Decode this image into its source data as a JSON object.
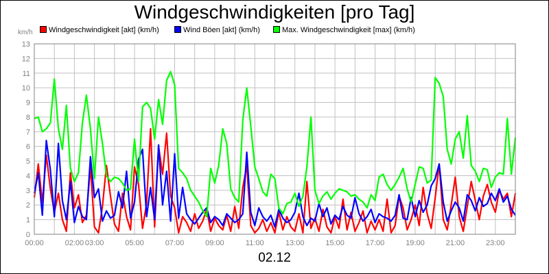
{
  "chart_data": {
    "type": "line",
    "title": "Windgeschwindigkeiten [pro Tag]",
    "xlabel": "02.12",
    "ylabel": "km/h",
    "ylim": [
      0,
      13
    ],
    "yticks": [
      0,
      1,
      2,
      3,
      4,
      5,
      6,
      7,
      8,
      9,
      10,
      11,
      12,
      13
    ],
    "xlim": [
      "00:00",
      "24:00"
    ],
    "xticks": [
      "00:00",
      "02:00",
      "03:00",
      "05:00",
      "07:00",
      "09:00",
      "11:00",
      "13:00",
      "15:00",
      "17:00",
      "19:00",
      "21:00",
      "23:00"
    ],
    "grid": true,
    "legend": "top",
    "series": [
      {
        "name": "Windgeschwindigkeit [akt] (km/h)",
        "color": "#ff0000",
        "x": [
          "00:00",
          "00:12",
          "00:24",
          "00:36",
          "00:48",
          "01:00",
          "01:12",
          "01:24",
          "01:36",
          "01:48",
          "02:00",
          "02:12",
          "02:24",
          "02:36",
          "02:48",
          "03:00",
          "03:12",
          "03:24",
          "03:36",
          "03:48",
          "04:00",
          "04:12",
          "04:24",
          "04:36",
          "04:48",
          "05:00",
          "05:12",
          "05:24",
          "05:36",
          "05:48",
          "06:00",
          "06:12",
          "06:24",
          "06:36",
          "06:48",
          "07:00",
          "07:12",
          "07:24",
          "07:36",
          "07:48",
          "08:00",
          "08:12",
          "08:24",
          "08:36",
          "08:48",
          "09:00",
          "09:12",
          "09:24",
          "09:36",
          "09:48",
          "10:00",
          "10:12",
          "10:24",
          "10:36",
          "10:48",
          "11:00",
          "11:12",
          "11:24",
          "11:36",
          "11:48",
          "12:00",
          "12:12",
          "12:24",
          "12:36",
          "12:48",
          "13:00",
          "13:12",
          "13:24",
          "13:36",
          "13:48",
          "14:00",
          "14:12",
          "14:24",
          "14:36",
          "14:48",
          "15:00",
          "15:12",
          "15:24",
          "15:36",
          "15:48",
          "16:00",
          "16:12",
          "16:24",
          "16:36",
          "16:48",
          "17:00",
          "17:12",
          "17:24",
          "17:36",
          "17:48",
          "18:00",
          "18:12",
          "18:24",
          "18:36",
          "18:48",
          "19:00",
          "19:12",
          "19:24",
          "19:36",
          "19:48",
          "20:00",
          "20:12",
          "20:24",
          "20:36",
          "20:48",
          "21:00",
          "21:12",
          "21:24",
          "21:36",
          "21:48",
          "22:00",
          "22:12",
          "22:24",
          "22:36",
          "22:48",
          "23:00",
          "23:12",
          "23:24",
          "23:36",
          "23:48",
          "24:00"
        ],
        "values": [
          2.5,
          4.8,
          2.2,
          5.4,
          3.1,
          1.5,
          2.8,
          1.0,
          0.2,
          4.2,
          1.8,
          2.7,
          0.8,
          1.3,
          4.6,
          0.5,
          0.1,
          1.9,
          4.7,
          2.6,
          0.7,
          0.2,
          2.8,
          1.2,
          0.3,
          4.6,
          3.4,
          0.4,
          2.1,
          7.2,
          0.5,
          6.0,
          4.1,
          6.9,
          2.6,
          1.8,
          0.1,
          1.2,
          0.8,
          0.2,
          1.4,
          0.4,
          0.9,
          1.7,
          0.2,
          1.1,
          0.6,
          0.3,
          1.3,
          0.2,
          1.9,
          0.4,
          3.2,
          4.7,
          0.6,
          0.1,
          0.4,
          1.0,
          0.2,
          0.8,
          0.1,
          1.5,
          0.3,
          1.2,
          0.5,
          0.2,
          1.4,
          0.1,
          3.6,
          0.4,
          1.1,
          0.2,
          1.7,
          0.5,
          0.1,
          1.2,
          0.4,
          2.4,
          0.3,
          1.5,
          0.2,
          0.8,
          1.6,
          0.1,
          0.9,
          0.3,
          1.0,
          0.2,
          2.4,
          0.1,
          0.6,
          2.6,
          1.8,
          0.3,
          1.0,
          2.0,
          0.6,
          3.2,
          1.4,
          0.4,
          2.5,
          4.8,
          1.0,
          0.3,
          2.0,
          3.9,
          1.2,
          0.2,
          1.9,
          3.6,
          2.3,
          1.0,
          2.6,
          3.4,
          2.2,
          1.5,
          3.0,
          2.4,
          2.8,
          1.2,
          2.8
        ]
      },
      {
        "name": "Wind Böen [akt] (km/h)",
        "color": "#0000ff",
        "x": [
          "00:00",
          "00:12",
          "00:24",
          "00:36",
          "00:48",
          "01:00",
          "01:12",
          "01:24",
          "01:36",
          "01:48",
          "02:00",
          "02:12",
          "02:24",
          "02:36",
          "02:48",
          "03:00",
          "03:12",
          "03:24",
          "03:36",
          "03:48",
          "04:00",
          "04:12",
          "04:24",
          "04:36",
          "04:48",
          "05:00",
          "05:12",
          "05:24",
          "05:36",
          "05:48",
          "06:00",
          "06:12",
          "06:24",
          "06:36",
          "06:48",
          "07:00",
          "07:12",
          "07:24",
          "07:36",
          "07:48",
          "08:00",
          "08:12",
          "08:24",
          "08:36",
          "08:48",
          "09:00",
          "09:12",
          "09:24",
          "09:36",
          "09:48",
          "10:00",
          "10:12",
          "10:24",
          "10:36",
          "10:48",
          "11:00",
          "11:12",
          "11:24",
          "11:36",
          "11:48",
          "12:00",
          "12:12",
          "12:24",
          "12:36",
          "12:48",
          "13:00",
          "13:12",
          "13:24",
          "13:36",
          "13:48",
          "14:00",
          "14:12",
          "14:24",
          "14:36",
          "14:48",
          "15:00",
          "15:12",
          "15:24",
          "15:36",
          "15:48",
          "16:00",
          "16:12",
          "16:24",
          "16:36",
          "16:48",
          "17:00",
          "17:12",
          "17:24",
          "17:36",
          "17:48",
          "18:00",
          "18:12",
          "18:24",
          "18:36",
          "18:48",
          "19:00",
          "19:12",
          "19:24",
          "19:36",
          "19:48",
          "20:00",
          "20:12",
          "20:24",
          "20:36",
          "20:48",
          "21:00",
          "21:12",
          "21:24",
          "21:36",
          "21:48",
          "22:00",
          "22:12",
          "22:24",
          "22:36",
          "22:48",
          "23:00",
          "23:12",
          "23:24",
          "23:36",
          "23:48",
          "24:00"
        ],
        "values": [
          2.8,
          4.2,
          1.3,
          6.4,
          4.4,
          1.2,
          6.2,
          2.3,
          1.0,
          3.6,
          0.8,
          1.9,
          1.2,
          1.0,
          5.3,
          2.5,
          3.1,
          0.9,
          1.6,
          1.1,
          1.3,
          2.9,
          1.8,
          4.3,
          1.1,
          2.2,
          5.1,
          5.8,
          1.2,
          3.2,
          1.0,
          6.1,
          2.0,
          4.3,
          0.9,
          5.5,
          1.1,
          3.2,
          1.4,
          1.0,
          0.7,
          1.1,
          1.5,
          1.8,
          0.8,
          1.2,
          1.0,
          0.6,
          1.4,
          1.1,
          0.8,
          1.0,
          1.4,
          5.6,
          1.5,
          0.6,
          1.8,
          1.2,
          0.9,
          1.3,
          0.5,
          1.7,
          1.1,
          0.8,
          1.0,
          1.5,
          2.8,
          1.2,
          0.6,
          1.1,
          0.9,
          2.1,
          1.2,
          1.8,
          0.7,
          1.3,
          1.0,
          1.9,
          1.3,
          1.1,
          2.5,
          1.4,
          0.9,
          1.2,
          1.7,
          0.8,
          1.4,
          1.2,
          1.1,
          0.9,
          1.3,
          2.7,
          1.1,
          1.0,
          2.5,
          1.2,
          2.3,
          1.5,
          2.0,
          3.3,
          3.8,
          4.8,
          2.2,
          0.9,
          1.6,
          2.2,
          1.8,
          0.9,
          2.7,
          2.3,
          1.6,
          2.5,
          1.9,
          2.1,
          2.8,
          2.3,
          3.1,
          2.2,
          2.6,
          1.7,
          1.3
        ]
      },
      {
        "name": "Max. Windgeschwindigkeit [max] (km/h)",
        "color": "#00ff00",
        "x": [
          "00:00",
          "00:12",
          "00:24",
          "00:36",
          "00:48",
          "01:00",
          "01:12",
          "01:24",
          "01:36",
          "01:48",
          "02:00",
          "02:12",
          "02:24",
          "02:36",
          "02:48",
          "03:00",
          "03:12",
          "03:24",
          "03:36",
          "03:48",
          "04:00",
          "04:12",
          "04:24",
          "04:36",
          "04:48",
          "05:00",
          "05:12",
          "05:24",
          "05:36",
          "05:48",
          "06:00",
          "06:12",
          "06:24",
          "06:36",
          "06:48",
          "07:00",
          "07:12",
          "07:24",
          "07:36",
          "07:48",
          "08:00",
          "08:12",
          "08:24",
          "08:36",
          "08:48",
          "09:00",
          "09:12",
          "09:24",
          "09:36",
          "09:48",
          "10:00",
          "10:12",
          "10:24",
          "10:36",
          "10:48",
          "11:00",
          "11:12",
          "11:24",
          "11:36",
          "11:48",
          "12:00",
          "12:12",
          "12:24",
          "12:36",
          "12:48",
          "13:00",
          "13:12",
          "13:24",
          "13:36",
          "13:48",
          "14:00",
          "14:12",
          "14:24",
          "14:36",
          "14:48",
          "15:00",
          "15:12",
          "15:24",
          "15:36",
          "15:48",
          "16:00",
          "16:12",
          "16:24",
          "16:36",
          "16:48",
          "17:00",
          "17:12",
          "17:24",
          "17:36",
          "17:48",
          "18:00",
          "18:12",
          "18:24",
          "18:36",
          "18:48",
          "19:00",
          "19:12",
          "19:24",
          "19:36",
          "19:48",
          "20:00",
          "20:12",
          "20:24",
          "20:36",
          "20:48",
          "21:00",
          "21:12",
          "21:24",
          "21:36",
          "21:48",
          "22:00",
          "22:12",
          "22:24",
          "22:36",
          "22:48",
          "23:00",
          "23:12",
          "23:24",
          "23:36",
          "23:48",
          "24:00"
        ],
        "values": [
          7.9,
          8.0,
          7.0,
          7.2,
          7.6,
          10.6,
          7.2,
          5.8,
          8.8,
          4.5,
          3.6,
          4.2,
          7.6,
          9.5,
          7.2,
          3.8,
          8.0,
          6.2,
          4.0,
          3.6,
          3.9,
          3.8,
          3.5,
          3.0,
          3.1,
          6.5,
          3.6,
          8.7,
          9.0,
          8.6,
          6.5,
          9.2,
          7.5,
          10.5,
          11.1,
          10.2,
          4.5,
          4.2,
          3.8,
          3.0,
          2.6,
          2.2,
          1.6,
          1.2,
          4.5,
          3.5,
          4.7,
          7.2,
          6.2,
          3.1,
          2.5,
          2.2,
          7.8,
          10.0,
          7.4,
          4.6,
          3.8,
          2.9,
          2.6,
          4.1,
          3.8,
          1.8,
          1.4,
          2.1,
          2.2,
          2.8,
          1.9,
          2.6,
          4.6,
          8.0,
          3.0,
          2.1,
          2.6,
          2.9,
          2.4,
          2.8,
          3.1,
          3.0,
          2.9,
          2.6,
          2.7,
          2.4,
          2.2,
          1.8,
          2.7,
          2.3,
          3.9,
          4.1,
          3.4,
          3.0,
          3.4,
          3.9,
          4.5,
          3.1,
          2.2,
          3.4,
          4.6,
          4.5,
          3.5,
          3.7,
          10.7,
          10.3,
          9.4,
          5.8,
          4.8,
          6.5,
          7.0,
          5.2,
          8.1,
          4.7,
          4.3,
          3.6,
          4.5,
          4.4,
          3.2,
          3.9,
          4.2,
          4.1,
          7.9,
          4.1,
          6.6
        ]
      }
    ]
  }
}
